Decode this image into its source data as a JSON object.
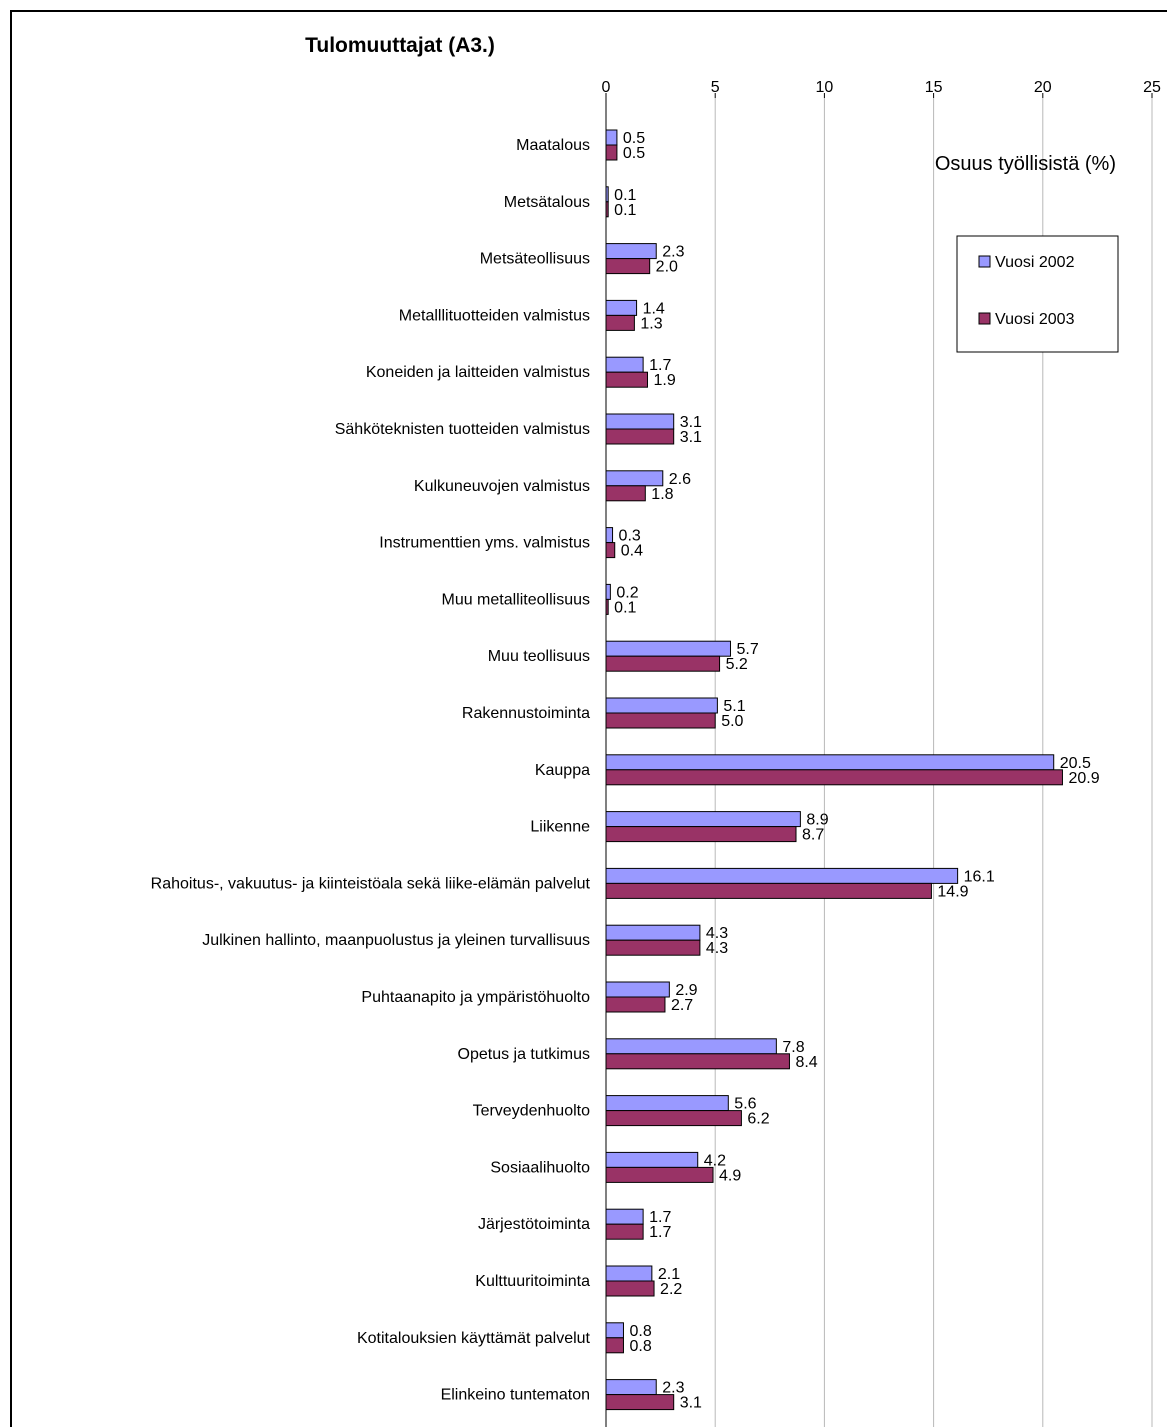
{
  "chart_data": {
    "type": "bar",
    "orientation": "horizontal",
    "title": "Tulomuuttajat (A3.)",
    "axis_note": "Osuus työllisistä (%)",
    "xlim": [
      0,
      25
    ],
    "xticks": [
      0,
      5,
      10,
      15,
      20,
      25
    ],
    "x_axis_position": "top",
    "grid": true,
    "legend_position": "top-right",
    "categories": [
      "Maatalous",
      "Metsätalous",
      "Metsäteollisuus",
      "Metalllituotteiden valmistus",
      "Koneiden ja laitteiden valmistus",
      "Sähköteknisten tuotteiden valmistus",
      "Kulkuneuvojen valmistus",
      "Instrumenttien yms. valmistus",
      "Muu metalliteollisuus",
      "Muu teollisuus",
      "Rakennustoiminta",
      "Kauppa",
      "Liikenne",
      "Rahoitus-, vakuutus- ja kiinteistöala sekä liike-elämän palvelut",
      "Julkinen hallinto, maanpuolustus ja yleinen turvallisuus",
      "Puhtaanapito ja ympäristöhuolto",
      "Opetus ja tutkimus",
      "Terveydenhuolto",
      "Sosiaalihuolto",
      "Järjestötoiminta",
      "Kulttuuritoiminta",
      "Kotitalouksien käyttämät palvelut",
      "Elinkeino tuntematon"
    ],
    "series": [
      {
        "name": "Vuosi 2002",
        "color": "#9999ff",
        "values": [
          0.5,
          0.1,
          2.3,
          1.4,
          1.7,
          3.1,
          2.6,
          0.3,
          0.2,
          5.7,
          5.1,
          20.5,
          8.9,
          16.1,
          4.3,
          2.9,
          7.8,
          5.6,
          4.2,
          1.7,
          2.1,
          0.8,
          2.3
        ],
        "labels": [
          "0.5",
          "0.1",
          "2.3",
          "1.4",
          "1.7",
          "3.1",
          "2.6",
          "0.3",
          "0.2",
          "5.7",
          "5.1",
          "20.5",
          "8.9",
          "16.1",
          "4.3",
          "2.9",
          "7.8",
          "5.6",
          "4.2",
          "1.7",
          "2.1",
          "0.8",
          "2.3"
        ]
      },
      {
        "name": "Vuosi 2003",
        "color": "#993366",
        "values": [
          0.5,
          0.1,
          2.0,
          1.3,
          1.9,
          3.1,
          1.8,
          0.4,
          0.1,
          5.2,
          5.0,
          20.9,
          8.7,
          14.9,
          4.3,
          2.7,
          8.4,
          6.2,
          4.9,
          1.7,
          2.2,
          0.8,
          3.1
        ],
        "labels": [
          "0.5",
          "0.1",
          "2.0",
          "1.3",
          "1.9",
          "3.1",
          "1.8",
          "0.4",
          "0.1",
          "5.2",
          "5.0",
          "20.9",
          "8.7",
          "14.9",
          "4.3",
          "2.7",
          "8.4",
          "6.2",
          "4.9",
          "1.7",
          "2.2",
          "0.8",
          "3.1"
        ]
      }
    ]
  }
}
